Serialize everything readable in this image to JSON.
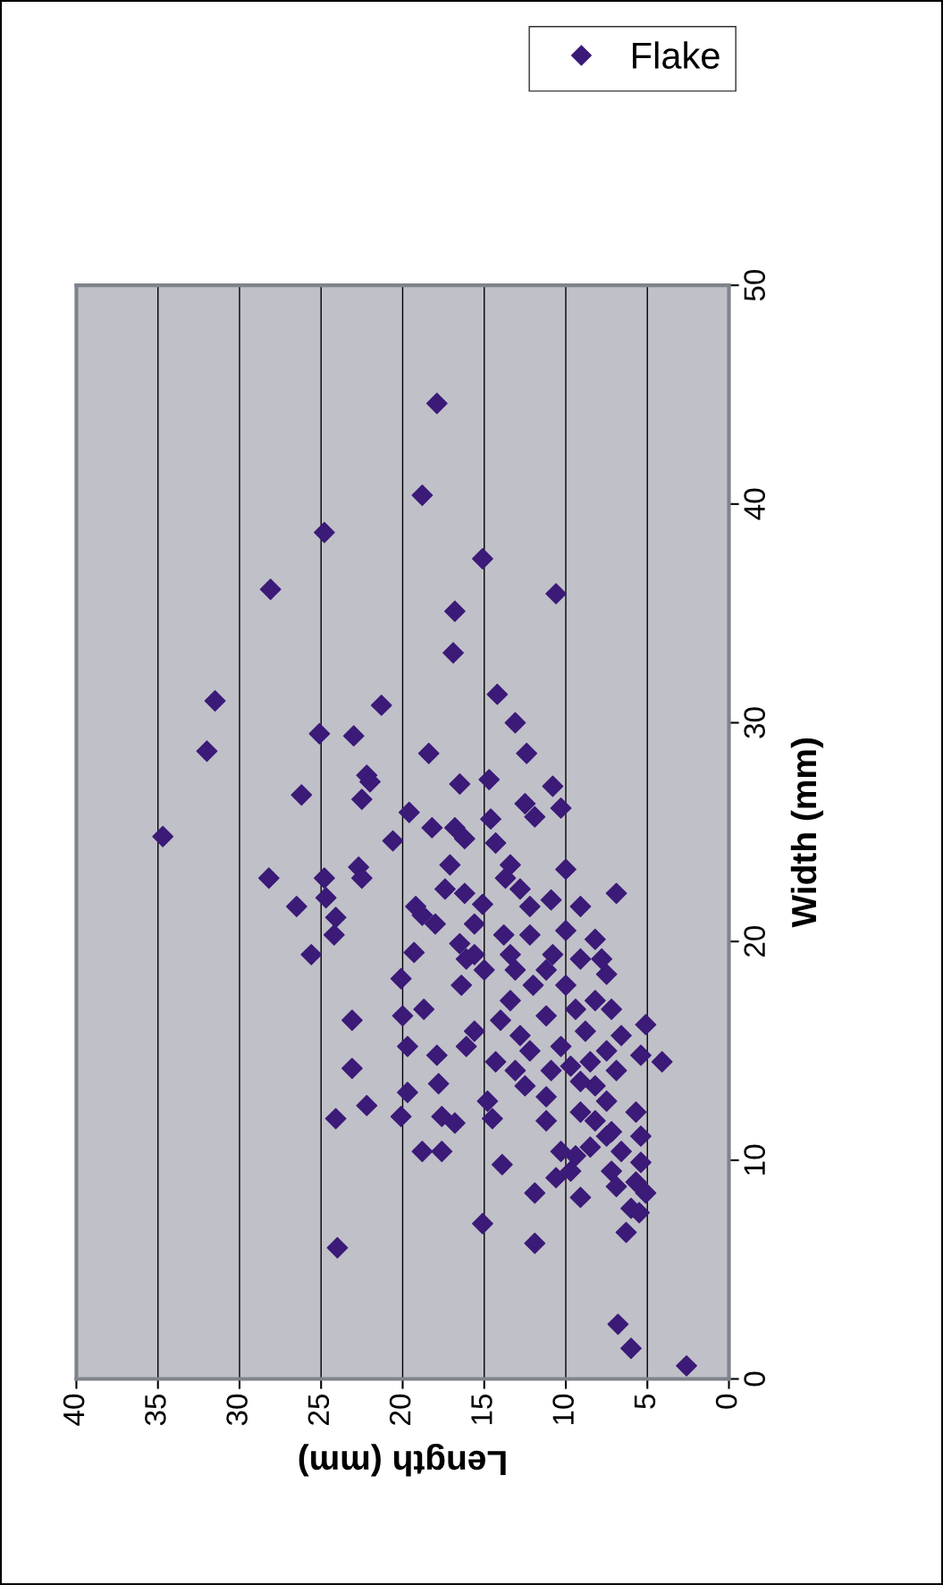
{
  "chart_data": {
    "type": "scatter",
    "xlabel": "Length (mm)",
    "ylabel": "Width (mm)",
    "xlim": [
      40,
      0
    ],
    "xticks": [
      0,
      5,
      10,
      15,
      20,
      25,
      30,
      35,
      40
    ],
    "ylim": [
      0,
      50
    ],
    "yticks": [
      0,
      10,
      20,
      30,
      40,
      50
    ],
    "grid": "x",
    "legend": "top right",
    "marker": "diamond",
    "series": [
      {
        "name": "Flake",
        "color": "#3b1a78",
        "values": [
          24.8,
          28.7,
          31.0,
          36.1,
          38.7,
          40.4,
          44.6,
          37.5,
          35.9,
          35.1,
          33.2,
          30.8,
          29.5,
          29.4,
          26.7,
          28.6,
          31.3,
          30.0,
          28.6,
          22.9,
          21.6,
          22.9,
          22.0,
          21.1,
          19.4,
          20.3,
          26.5,
          27.6,
          27.3,
          23.4,
          22.9,
          24.6,
          25.9,
          25.2,
          21.6,
          19.5,
          18.3,
          16.6,
          15.2,
          16.4,
          14.2,
          12.5,
          11.9,
          12.0,
          13.1,
          6.0,
          10.4,
          10.4,
          12.0,
          11.7,
          14.8,
          13.5,
          16.9,
          15.2,
          7.1,
          6.2,
          8.5,
          12.7,
          9.8,
          11.9,
          18.0,
          19.2,
          20.8,
          21.2,
          22.4,
          23.5,
          25.2,
          27.2,
          24.7,
          27.4,
          25.6,
          24.5,
          22.9,
          21.7,
          20.3,
          18.7,
          18.7,
          17.3,
          16.4,
          15.7,
          14.5,
          14.1,
          15.0,
          16.6,
          18.0,
          19.4,
          20.5,
          21.6,
          23.3,
          26.1,
          27.1,
          26.3,
          25.7,
          21.9,
          21.6,
          20.3,
          18.7,
          18.0,
          16.9,
          17.3,
          18.5,
          16.9,
          15.9,
          15.2,
          14.3,
          14.5,
          15.0,
          15.7,
          16.2,
          14.8,
          14.5,
          14.1,
          13.4,
          12.7,
          12.2,
          11.8,
          11.1,
          10.6,
          10.2,
          10.4,
          9.2,
          9.5,
          8.3,
          9.5,
          8.8,
          9.0,
          9.9,
          8.5,
          7.8,
          11.1,
          12.2,
          6.7,
          7.6,
          2.5,
          1.4,
          0.6,
          11.3,
          10.4,
          11.8,
          12.9,
          13.6,
          13.4,
          14.1,
          15.9,
          19.4,
          19.4,
          22.4,
          23.5,
          22.2,
          19.9,
          20.8,
          22.2,
          20.1,
          19.2,
          19.2
        ],
        "x": [
          34.7,
          32.0,
          31.5,
          28.1,
          24.8,
          18.8,
          17.9,
          15.1,
          10.6,
          16.8,
          16.9,
          21.3,
          25.1,
          23.0,
          26.2,
          18.4,
          14.2,
          13.1,
          12.4,
          28.2,
          26.5,
          24.8,
          24.7,
          24.1,
          25.6,
          24.2,
          22.5,
          22.2,
          22.0,
          22.7,
          22.5,
          20.6,
          19.6,
          18.2,
          19.2,
          19.3,
          20.1,
          20.0,
          19.7,
          23.1,
          23.1,
          22.2,
          24.1,
          20.1,
          19.7,
          24.0,
          18.8,
          17.6,
          17.6,
          16.8,
          17.9,
          17.8,
          18.7,
          16.1,
          15.1,
          11.9,
          11.9,
          14.8,
          13.9,
          14.5,
          16.4,
          16.1,
          15.6,
          18.8,
          17.4,
          17.1,
          16.8,
          16.5,
          16.2,
          14.7,
          14.6,
          14.3,
          13.7,
          15.1,
          13.8,
          15.0,
          13.1,
          13.4,
          14.0,
          12.8,
          14.3,
          13.1,
          12.2,
          11.2,
          12.0,
          10.8,
          10.0,
          9.1,
          10.0,
          10.3,
          10.8,
          12.5,
          11.9,
          10.9,
          12.2,
          12.2,
          11.2,
          10.0,
          9.4,
          8.2,
          7.5,
          7.2,
          8.8,
          10.3,
          9.7,
          8.5,
          7.5,
          6.6,
          5.1,
          5.4,
          4.1,
          6.9,
          8.2,
          7.5,
          9.1,
          8.2,
          7.5,
          8.5,
          9.4,
          10.3,
          10.6,
          9.7,
          9.1,
          7.2,
          6.9,
          5.7,
          5.4,
          5.1,
          6.0,
          5.4,
          5.7,
          6.3,
          5.5,
          6.8,
          6.0,
          2.6,
          7.2,
          6.6,
          11.2,
          11.2,
          9.1,
          12.5,
          10.9,
          15.6,
          15.6,
          13.4,
          12.8,
          13.4,
          16.2,
          16.5,
          18.0,
          6.9,
          8.2,
          9.1,
          7.8
        ]
      }
    ]
  }
}
